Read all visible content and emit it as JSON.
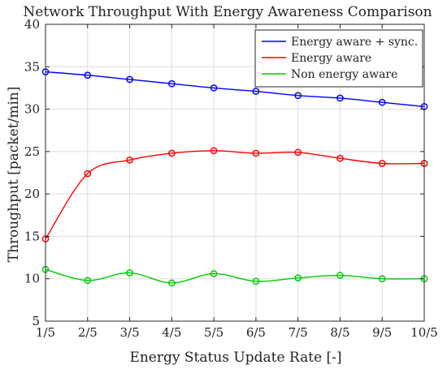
{
  "chart_data": {
    "type": "line",
    "title": "Network Throughput With Energy Awareness Comparison",
    "xlabel": "Energy Status Update Rate [-]",
    "ylabel": "Throughput [packet/min]",
    "categories": [
      "1/5",
      "2/5",
      "3/5",
      "4/5",
      "5/5",
      "6/5",
      "7/5",
      "8/5",
      "9/5",
      "10/5"
    ],
    "ylim": [
      5,
      40
    ],
    "yticks": [
      "5",
      "10",
      "15",
      "20",
      "25",
      "30",
      "35",
      "40"
    ],
    "grid": true,
    "legend_position": "top-right",
    "series": [
      {
        "name": "Energy aware + sync.",
        "color": "#0000ff",
        "values": [
          34.4,
          34.0,
          33.5,
          33.0,
          32.5,
          32.1,
          31.6,
          31.3,
          30.8,
          30.3
        ]
      },
      {
        "name": "Energy aware",
        "color": "#ff0000",
        "values": [
          14.7,
          22.4,
          24.0,
          24.8,
          25.1,
          24.8,
          24.9,
          24.2,
          23.6,
          23.6
        ]
      },
      {
        "name": "Non energy aware",
        "color": "#00cc00",
        "values": [
          11.1,
          9.8,
          10.7,
          9.5,
          10.6,
          9.7,
          10.1,
          10.4,
          10.0,
          10.0
        ]
      }
    ]
  }
}
